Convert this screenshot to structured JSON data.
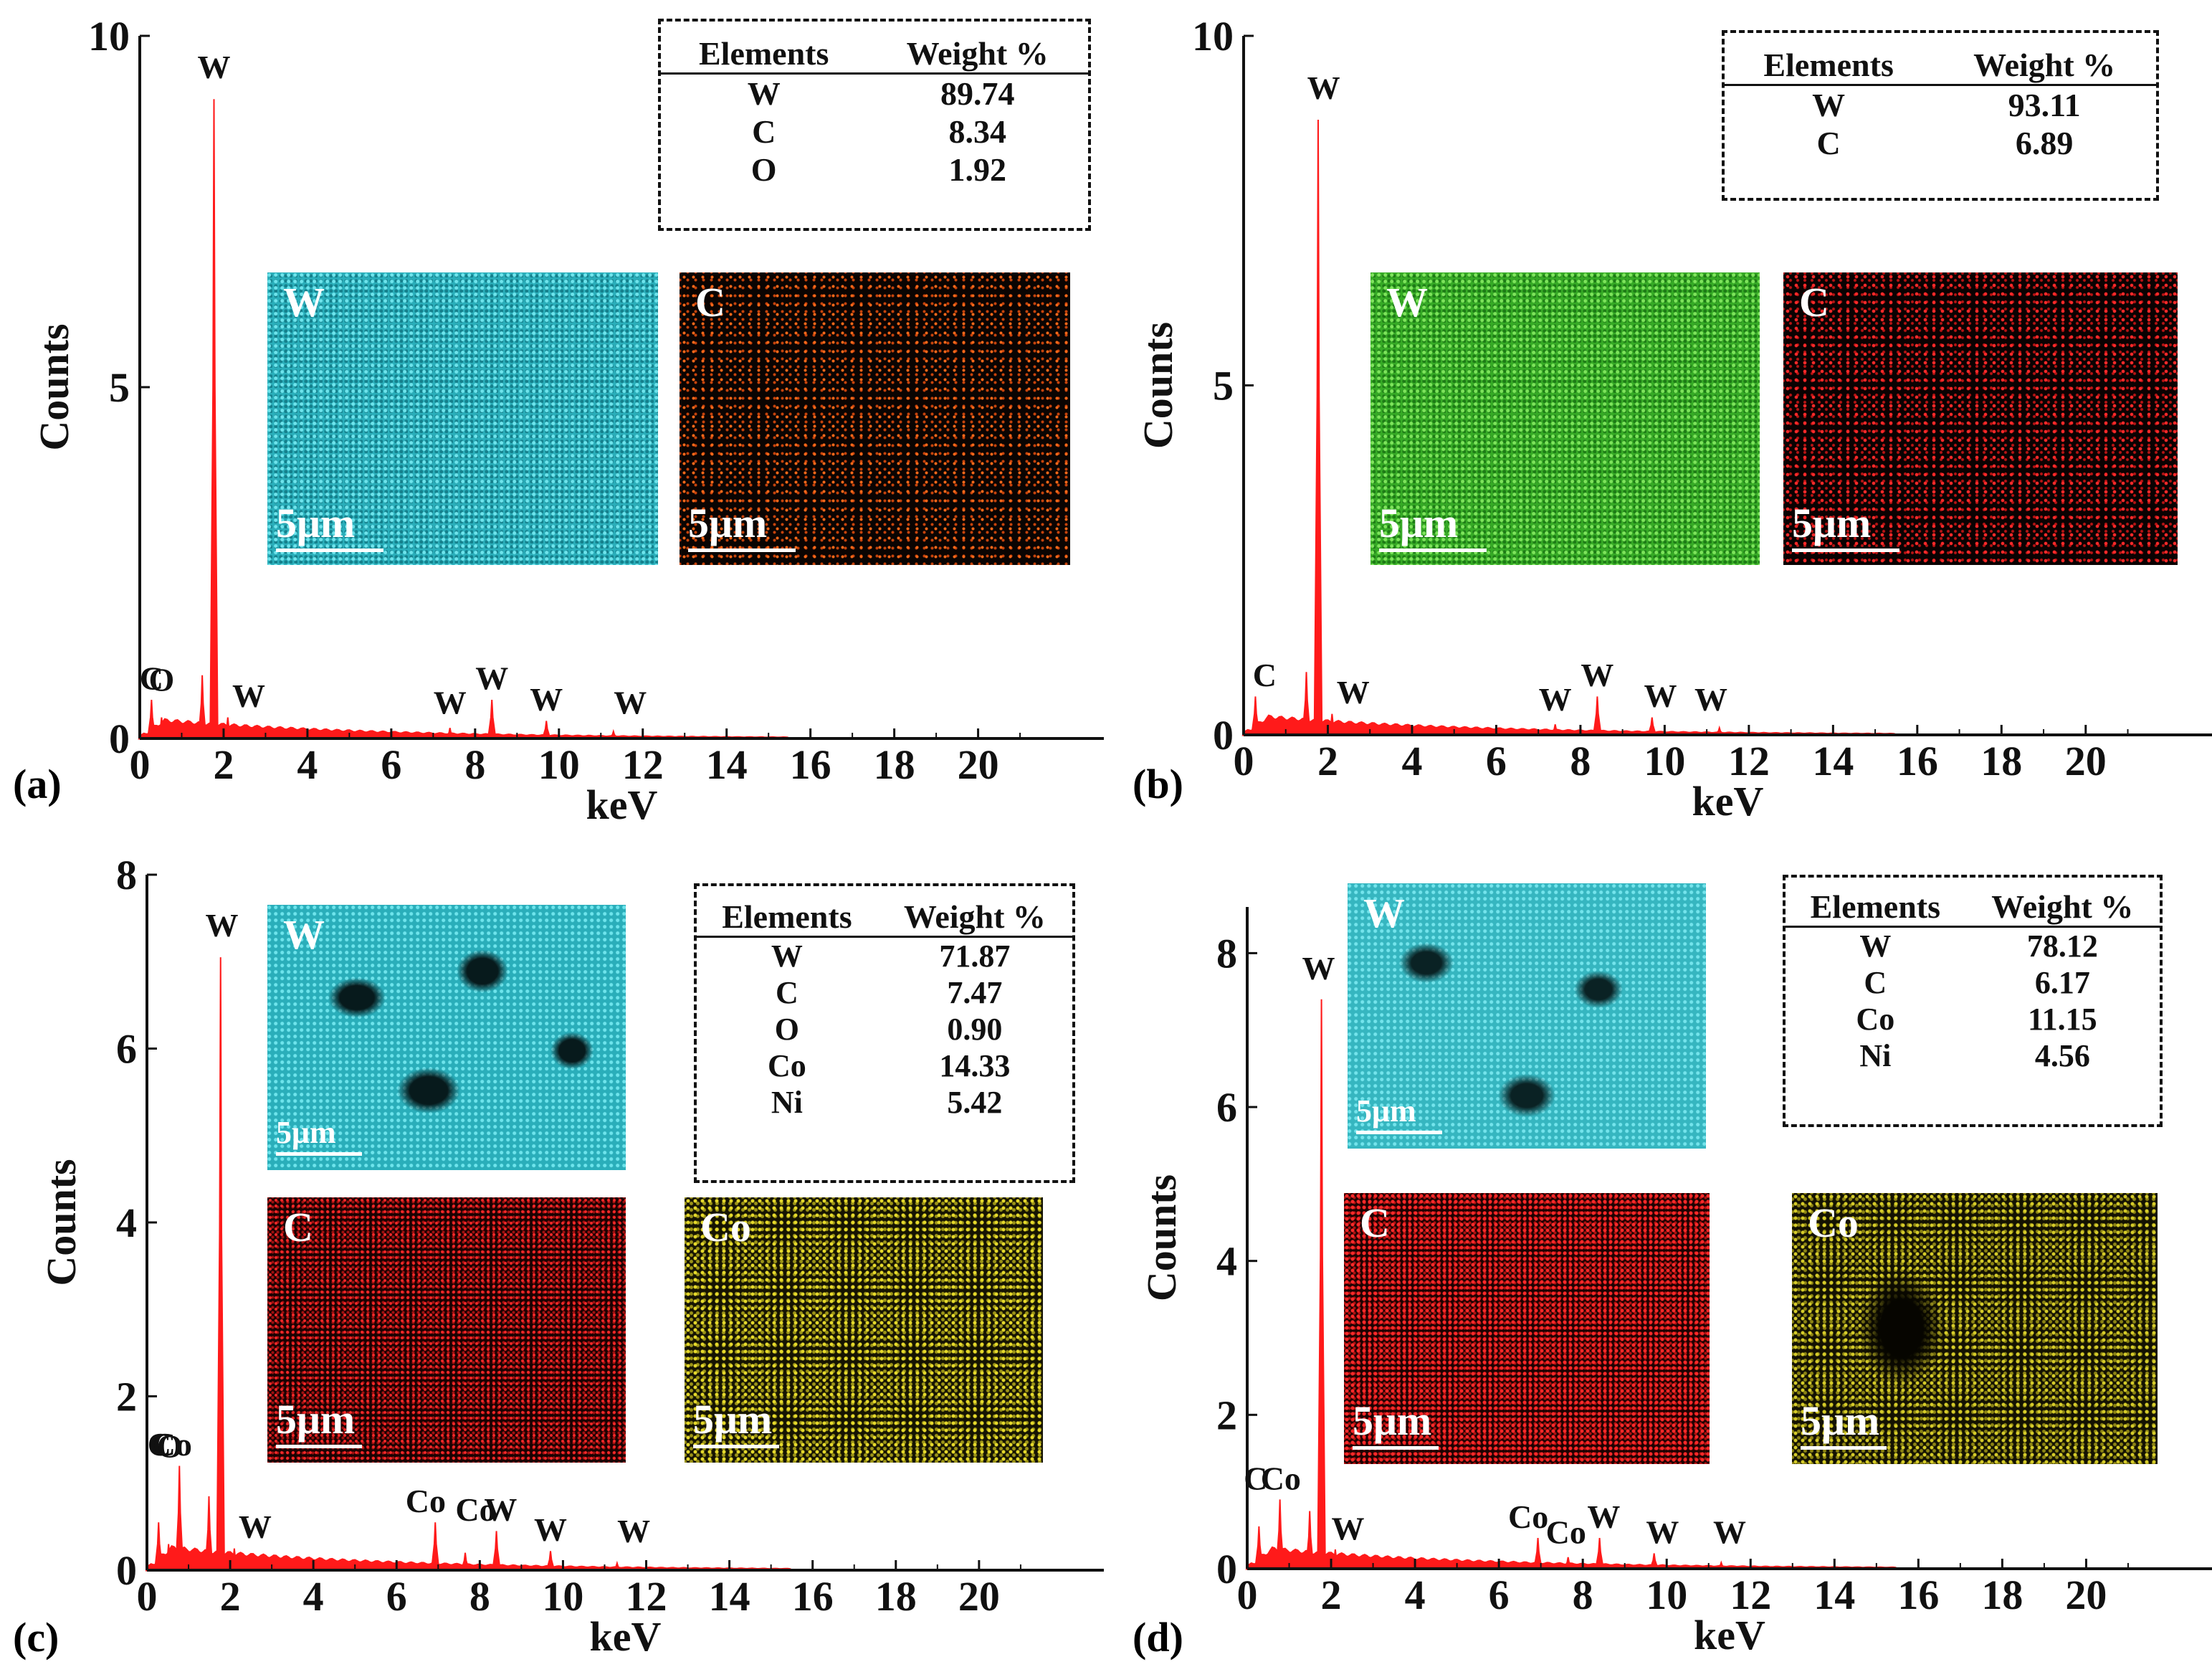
{
  "colors": {
    "spectrum": "#ff1a1a",
    "axis": "#111111",
    "W_cyan": "#2fc4d0",
    "W_green": "#3fbf2a",
    "C_orange": "#ff6a1a",
    "C_red": "#ff2020",
    "Co_yellow": "#d9cc28"
  },
  "xlabel": "keV",
  "ylabel": "Counts",
  "map_scale": "5μm",
  "table_headers": [
    "Elements",
    "Weight %"
  ],
  "chart_data": [
    {
      "type": "line",
      "panel": "(a)",
      "x": [
        0.28,
        0.52,
        1.49,
        1.77,
        2.1,
        7.4,
        8.4,
        9.7,
        11.3
      ],
      "y": [
        0.55,
        0.3,
        0.9,
        9.1,
        0.3,
        0.15,
        0.55,
        0.25,
        0.1
      ],
      "xlabel": "keV",
      "ylabel": "Counts",
      "xlim": [
        0,
        23
      ],
      "ylim": [
        0,
        10
      ],
      "xticks": [
        0,
        2,
        4,
        6,
        8,
        10,
        12,
        14,
        16,
        18,
        20
      ],
      "yticks": [
        0,
        5,
        10
      ],
      "peaks": [
        {
          "label": "W",
          "x": 1.77
        },
        {
          "label": "C",
          "x": 0.28
        },
        {
          "label": "O",
          "x": 0.52
        },
        {
          "label": "W",
          "x": 2.6
        },
        {
          "label": "W",
          "x": 7.4
        },
        {
          "label": "W",
          "x": 8.4
        },
        {
          "label": "W",
          "x": 9.7
        },
        {
          "label": "W",
          "x": 11.7
        }
      ],
      "composition": [
        [
          "W",
          "89.74"
        ],
        [
          "C",
          "8.34"
        ],
        [
          "O",
          "1.92"
        ]
      ],
      "maps": [
        "W",
        "C"
      ]
    },
    {
      "type": "line",
      "panel": "(b)",
      "x": [
        0.28,
        1.49,
        1.77,
        2.1,
        7.4,
        8.4,
        9.7,
        11.3
      ],
      "y": [
        0.55,
        0.9,
        8.8,
        0.3,
        0.15,
        0.55,
        0.25,
        0.1
      ],
      "xlabel": "keV",
      "ylabel": "Counts",
      "xlim": [
        0,
        23
      ],
      "ylim": [
        0,
        10
      ],
      "xticks": [
        0,
        2,
        4,
        6,
        8,
        10,
        12,
        14,
        16,
        18,
        20
      ],
      "yticks": [
        0,
        5,
        10
      ],
      "peaks": [
        {
          "label": "W",
          "x": 1.9
        },
        {
          "label": "C",
          "x": 0.5
        },
        {
          "label": "W",
          "x": 2.6
        },
        {
          "label": "W",
          "x": 7.4
        },
        {
          "label": "W",
          "x": 8.4
        },
        {
          "label": "W",
          "x": 9.9
        },
        {
          "label": "W",
          "x": 11.1
        }
      ],
      "composition": [
        [
          "W",
          "93.11"
        ],
        [
          "C",
          "6.89"
        ]
      ],
      "maps": [
        "W",
        "C"
      ]
    },
    {
      "type": "line",
      "panel": "(c)",
      "x": [
        0.28,
        0.52,
        0.78,
        1.49,
        1.77,
        2.1,
        6.93,
        7.65,
        8.4,
        9.7,
        11.3
      ],
      "y": [
        0.55,
        0.3,
        1.2,
        0.85,
        7.05,
        0.25,
        0.55,
        0.2,
        0.45,
        0.22,
        0.08
      ],
      "xlabel": "keV",
      "ylabel": "Counts",
      "xlim": [
        0,
        23
      ],
      "ylim": [
        0,
        8
      ],
      "xticks": [
        0,
        2,
        4,
        6,
        8,
        10,
        12,
        14,
        16,
        18,
        20
      ],
      "yticks": [
        0,
        2,
        4,
        6,
        8
      ],
      "peaks": [
        {
          "label": "W",
          "x": 1.8
        },
        {
          "label": "Co",
          "x": 0.6
        },
        {
          "label": "C",
          "x": 0.3
        },
        {
          "label": "O",
          "x": 0.55
        },
        {
          "label": "W",
          "x": 2.6
        },
        {
          "label": "Co",
          "x": 6.7
        },
        {
          "label": "Co",
          "x": 7.9
        },
        {
          "label": "W",
          "x": 8.5
        },
        {
          "label": "W",
          "x": 9.7
        },
        {
          "label": "W",
          "x": 11.7
        }
      ],
      "composition": [
        [
          "W",
          "71.87"
        ],
        [
          "C",
          "7.47"
        ],
        [
          "O",
          "0.90"
        ],
        [
          "Co",
          "14.33"
        ],
        [
          "Ni",
          "5.42"
        ]
      ],
      "maps": [
        "W",
        "C",
        "Co"
      ]
    },
    {
      "type": "line",
      "panel": "(d)",
      "x": [
        0.28,
        0.78,
        1.49,
        1.77,
        2.1,
        6.93,
        7.65,
        8.4,
        9.7,
        11.3
      ],
      "y": [
        0.55,
        0.9,
        0.75,
        7.4,
        0.25,
        0.4,
        0.15,
        0.4,
        0.2,
        0.08
      ],
      "xlabel": "keV",
      "ylabel": "Counts",
      "xlim": [
        0,
        23
      ],
      "ylim": [
        0,
        8.6
      ],
      "xticks": [
        0,
        2,
        4,
        6,
        8,
        10,
        12,
        14,
        16,
        18,
        20
      ],
      "yticks": [
        0,
        2,
        4,
        6,
        8
      ],
      "peaks": [
        {
          "label": "W",
          "x": 1.7
        },
        {
          "label": "Co",
          "x": 0.8
        },
        {
          "label": "C",
          "x": 0.2
        },
        {
          "label": "W",
          "x": 2.4
        },
        {
          "label": "Co",
          "x": 6.7
        },
        {
          "label": "Co",
          "x": 7.6
        },
        {
          "label": "W",
          "x": 8.5
        },
        {
          "label": "W",
          "x": 9.9
        },
        {
          "label": "W",
          "x": 11.5
        }
      ],
      "composition": [
        [
          "W",
          "78.12"
        ],
        [
          "C",
          "6.17"
        ],
        [
          "Co",
          "11.15"
        ],
        [
          "Ni",
          "4.56"
        ]
      ],
      "maps": [
        "W",
        "C",
        "Co"
      ]
    }
  ]
}
